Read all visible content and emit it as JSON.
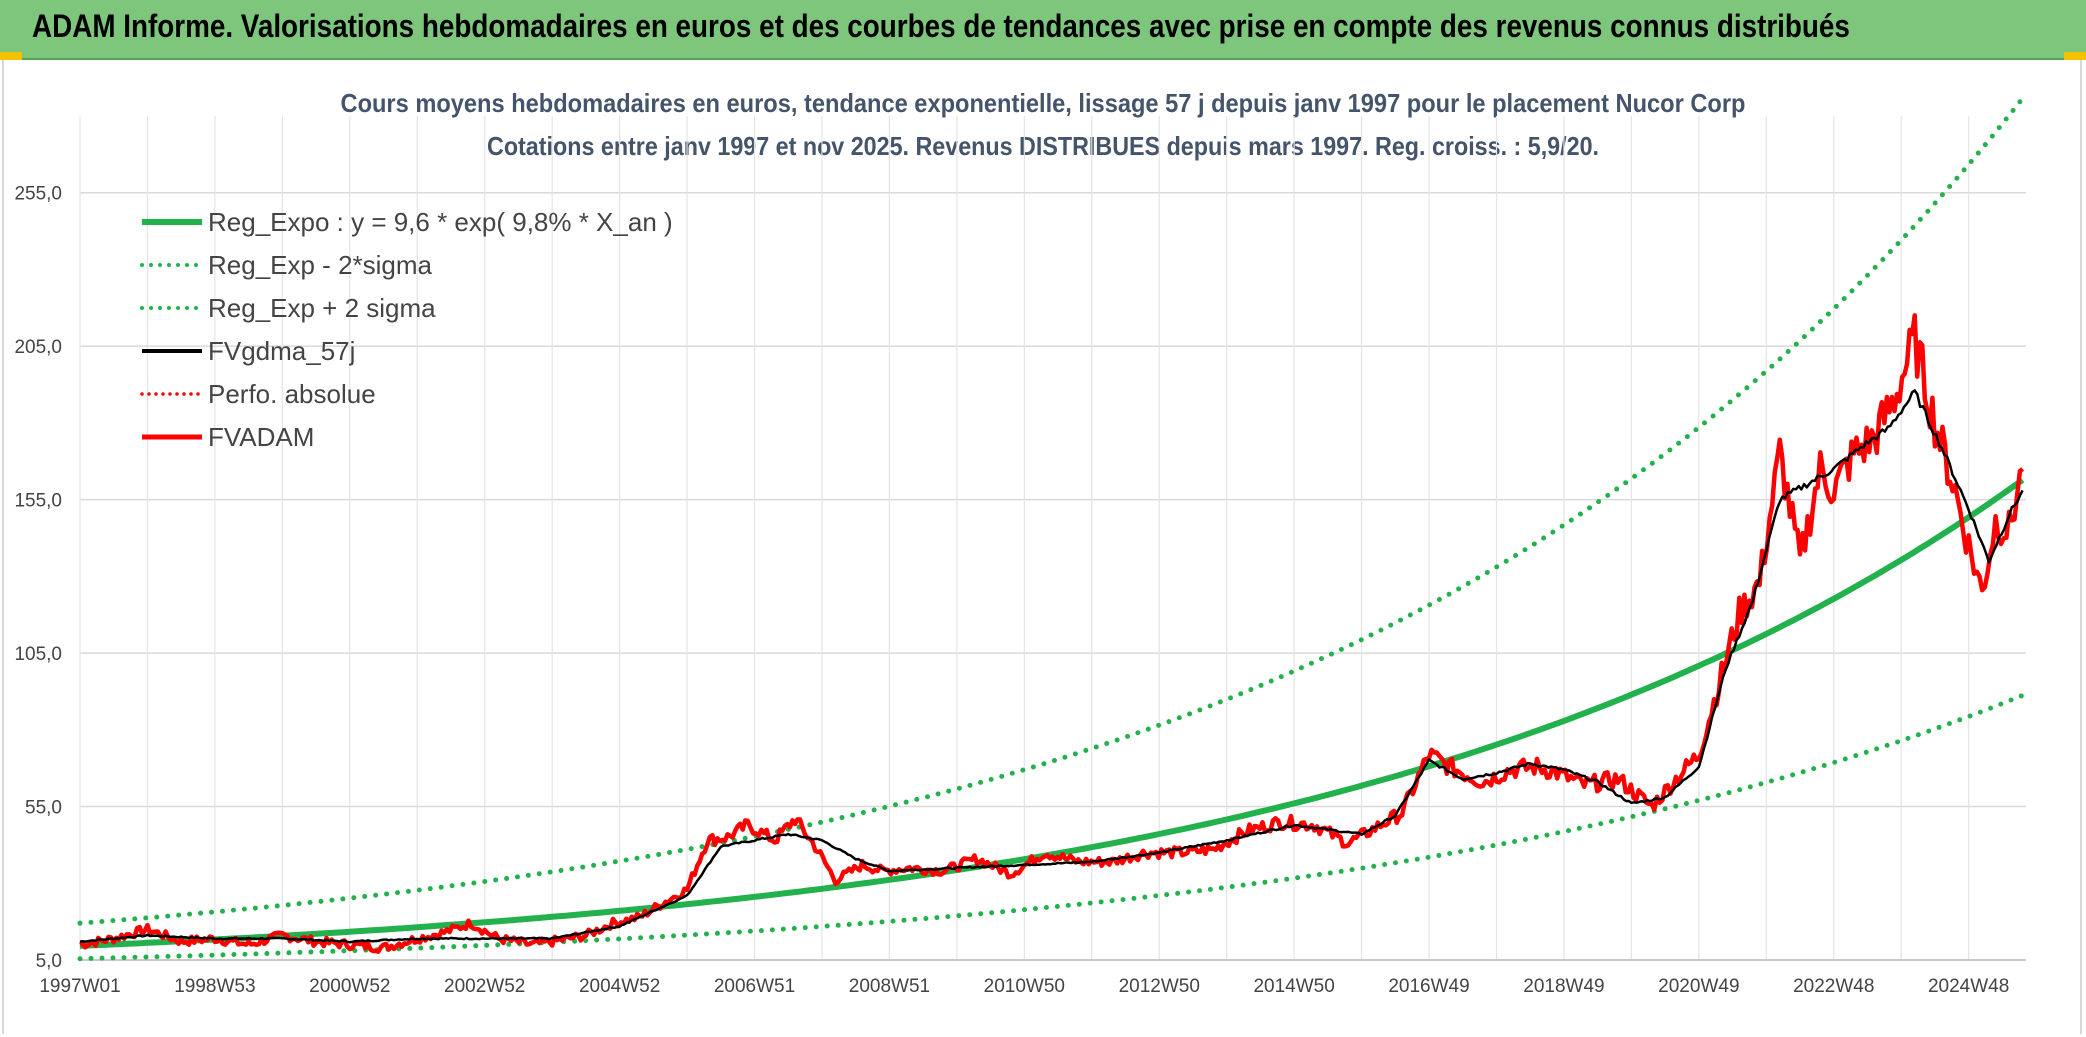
{
  "header": {
    "title": "ADAM Informe. Valorisations hebdomadaires en euros et des courbes de tendances avec prise en compte des revenus connus distribués"
  },
  "colors": {
    "banner": "#7dc67b",
    "reg": "#22b14c",
    "fvgdma": "#000000",
    "fvadam": "#ff0000",
    "perfo": "#ff0000"
  },
  "chart_data": {
    "type": "line",
    "title_line1": "Cours moyens hebdomadaires en euros, tendance exponentielle, lissage 57 j depuis janv 1997 pour le placement Nucor Corp",
    "title_line2": "Cotations entre janv 1997 et nov 2025. Revenus DISTRIBUES depuis mars 1997. Reg. croiss. : 5,9/20.",
    "ylim": [
      5,
      280
    ],
    "yticks": [
      "5,0",
      "55,0",
      "105,0",
      "155,0",
      "205,0",
      "255,0"
    ],
    "ytick_values": [
      5,
      55,
      105,
      155,
      205,
      255
    ],
    "xlim": [
      1997.0,
      2025.85
    ],
    "xticks": [
      "1997W01",
      "1998W53",
      "2000W52",
      "2002W52",
      "2004W52",
      "2006W51",
      "2008W51",
      "2010W50",
      "2012W50",
      "2014W50",
      "2016W49",
      "2018W49",
      "2020W49",
      "2022W48",
      "2024W48"
    ],
    "xtick_values": [
      1997.0,
      1999.0,
      2001.0,
      2003.0,
      2005.0,
      2007.0,
      2009.0,
      2011.0,
      2013.0,
      2015.0,
      2017.0,
      2019.0,
      2021.0,
      2023.0,
      2025.0
    ],
    "legend": [
      {
        "label": "Reg_Expo : y = 9,6 * exp( 9,8% *  X_an )",
        "key": "reg",
        "style": "solid-thick"
      },
      {
        "label": "Reg_Exp - 2*sigma",
        "key": "reg_lo",
        "style": "dotted-green"
      },
      {
        "label": "Reg_Exp + 2 sigma",
        "key": "reg_hi",
        "style": "dotted-green"
      },
      {
        "label": "FVgdma_57j",
        "key": "fvgdma",
        "style": "solid-black"
      },
      {
        "label": "Perfo. absolue",
        "key": "perfo",
        "style": "dotted-red"
      },
      {
        "label": "FVADAM",
        "key": "fvadam",
        "style": "solid-red"
      }
    ],
    "legend_position": "top-left",
    "regression": {
      "a": 9.6,
      "b": 0.098,
      "lower_factor": 0.565,
      "upper_factor": 1.77
    },
    "series": [
      {
        "name": "FVADAM",
        "x": [
          1997.0,
          1997.5,
          1998.0,
          1998.5,
          1999.0,
          1999.5,
          2000.0,
          2000.5,
          2001.0,
          2001.5,
          2002.0,
          2002.4,
          2002.8,
          2003.2,
          2003.7,
          2004.0,
          2004.5,
          2004.9,
          2005.3,
          2005.6,
          2006.0,
          2006.3,
          2006.6,
          2006.9,
          2007.3,
          2007.6,
          2007.9,
          2008.2,
          2008.6,
          2008.9,
          2009.3,
          2009.8,
          2010.3,
          2010.8,
          2011.3,
          2011.8,
          2012.3,
          2012.8,
          2013.3,
          2013.8,
          2014.3,
          2014.8,
          2015.3,
          2015.8,
          2016.2,
          2016.6,
          2017.0,
          2017.3,
          2017.8,
          2018.2,
          2018.6,
          2018.9,
          2019.3,
          2019.8,
          2020.3,
          2020.7,
          2021.0,
          2021.3,
          2021.6,
          2021.9,
          2022.2,
          2022.5,
          2022.8,
          2023.0,
          2023.3,
          2023.6,
          2023.9,
          2024.2,
          2024.5,
          2024.8,
          2025.0,
          2025.2,
          2025.4,
          2025.6,
          2025.8
        ],
        "values": [
          10,
          12,
          15,
          11,
          12,
          10,
          13,
          11,
          10,
          9,
          12,
          14,
          17,
          12,
          10,
          11,
          13,
          17,
          19,
          23,
          28,
          44,
          45,
          49,
          44,
          51,
          42,
          31,
          36,
          34,
          35,
          34,
          38,
          33,
          40,
          37,
          37,
          40,
          40,
          41,
          47,
          50,
          49,
          43,
          48,
          53,
          72,
          68,
          63,
          67,
          68,
          66,
          62,
          64,
          55,
          65,
          72,
          95,
          118,
          128,
          170,
          135,
          165,
          158,
          170,
          175,
          188,
          207,
          180,
          158,
          140,
          125,
          148,
          145,
          165
        ]
      },
      {
        "name": "FVgdma_57j",
        "x": [
          1997.0,
          1998.0,
          1999.0,
          2000.0,
          2001.0,
          2002.0,
          2003.0,
          2004.0,
          2005.0,
          2006.0,
          2006.5,
          2007.0,
          2007.5,
          2008.0,
          2008.5,
          2009.0,
          2010.0,
          2011.0,
          2012.0,
          2013.0,
          2014.0,
          2015.0,
          2016.0,
          2016.5,
          2017.0,
          2017.5,
          2018.0,
          2018.5,
          2019.0,
          2019.5,
          2020.0,
          2020.5,
          2021.0,
          2021.4,
          2021.8,
          2022.2,
          2022.6,
          2023.0,
          2023.4,
          2023.8,
          2024.2,
          2024.6,
          2025.0,
          2025.3,
          2025.6,
          2025.8
        ],
        "values": [
          11,
          13,
          12,
          12,
          11,
          12,
          12,
          12,
          16,
          26,
          42,
          44,
          46,
          44,
          38,
          34,
          35,
          36,
          37,
          40,
          44,
          49,
          46,
          52,
          70,
          64,
          66,
          69,
          67,
          63,
          56,
          58,
          68,
          100,
          122,
          155,
          160,
          165,
          172,
          178,
          190,
          172,
          152,
          135,
          150,
          158
        ]
      }
    ]
  }
}
